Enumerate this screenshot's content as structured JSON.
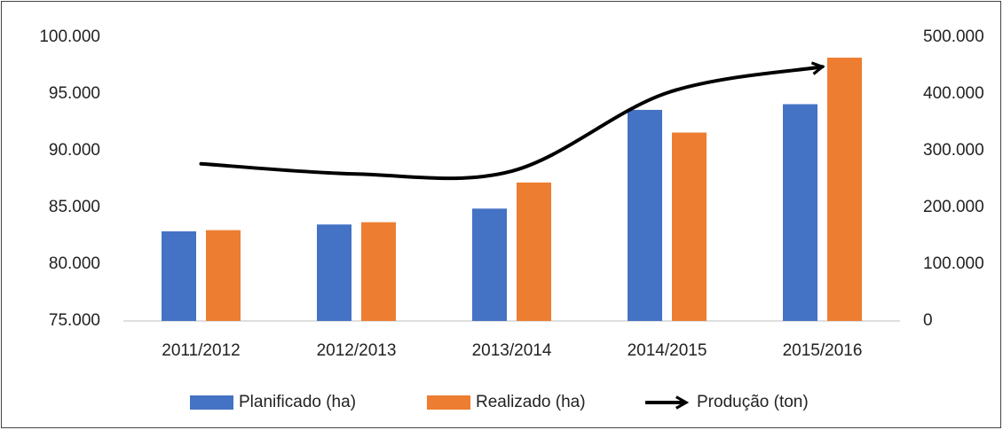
{
  "chart_data": {
    "type": "bar_line",
    "categories": [
      "2011/2012",
      "2012/2013",
      "2013/2014",
      "2014/2015",
      "2015/2016"
    ],
    "series": [
      {
        "name": "Planificado (ha)",
        "color": "#4472c4",
        "type": "bar",
        "values": [
          82900,
          83500,
          84900,
          93600,
          94100
        ]
      },
      {
        "name": "Realizado (ha)",
        "color": "#ed7d31",
        "type": "bar",
        "values": [
          83000,
          83700,
          87200,
          91600,
          98200
        ]
      },
      {
        "name": "Produção (ton)",
        "color": "#000000",
        "type": "line",
        "axis": "y2",
        "values": [
          277000,
          259000,
          264000,
          402000,
          448000
        ]
      }
    ],
    "ylim": [
      75000,
      100000
    ],
    "yticks": [
      {
        "value": 75000,
        "label": "75.000"
      },
      {
        "value": 80000,
        "label": "80.000"
      },
      {
        "value": 85000,
        "label": "85.000"
      },
      {
        "value": 90000,
        "label": "90.000"
      },
      {
        "value": 95000,
        "label": "95.000"
      },
      {
        "value": 100000,
        "label": "100.000"
      }
    ],
    "y2lim": [
      0,
      500000
    ],
    "y2ticks": [
      0,
      {
        "value": 100000,
        "label": "100.000"
      },
      {
        "value": 200000,
        "label": "200.000"
      },
      {
        "value": 300000,
        "label": "300.000"
      },
      {
        "value": 400000,
        "label": "400.000"
      },
      {
        "value": 500000,
        "label": "500.000"
      }
    ],
    "legend": "bottom"
  }
}
